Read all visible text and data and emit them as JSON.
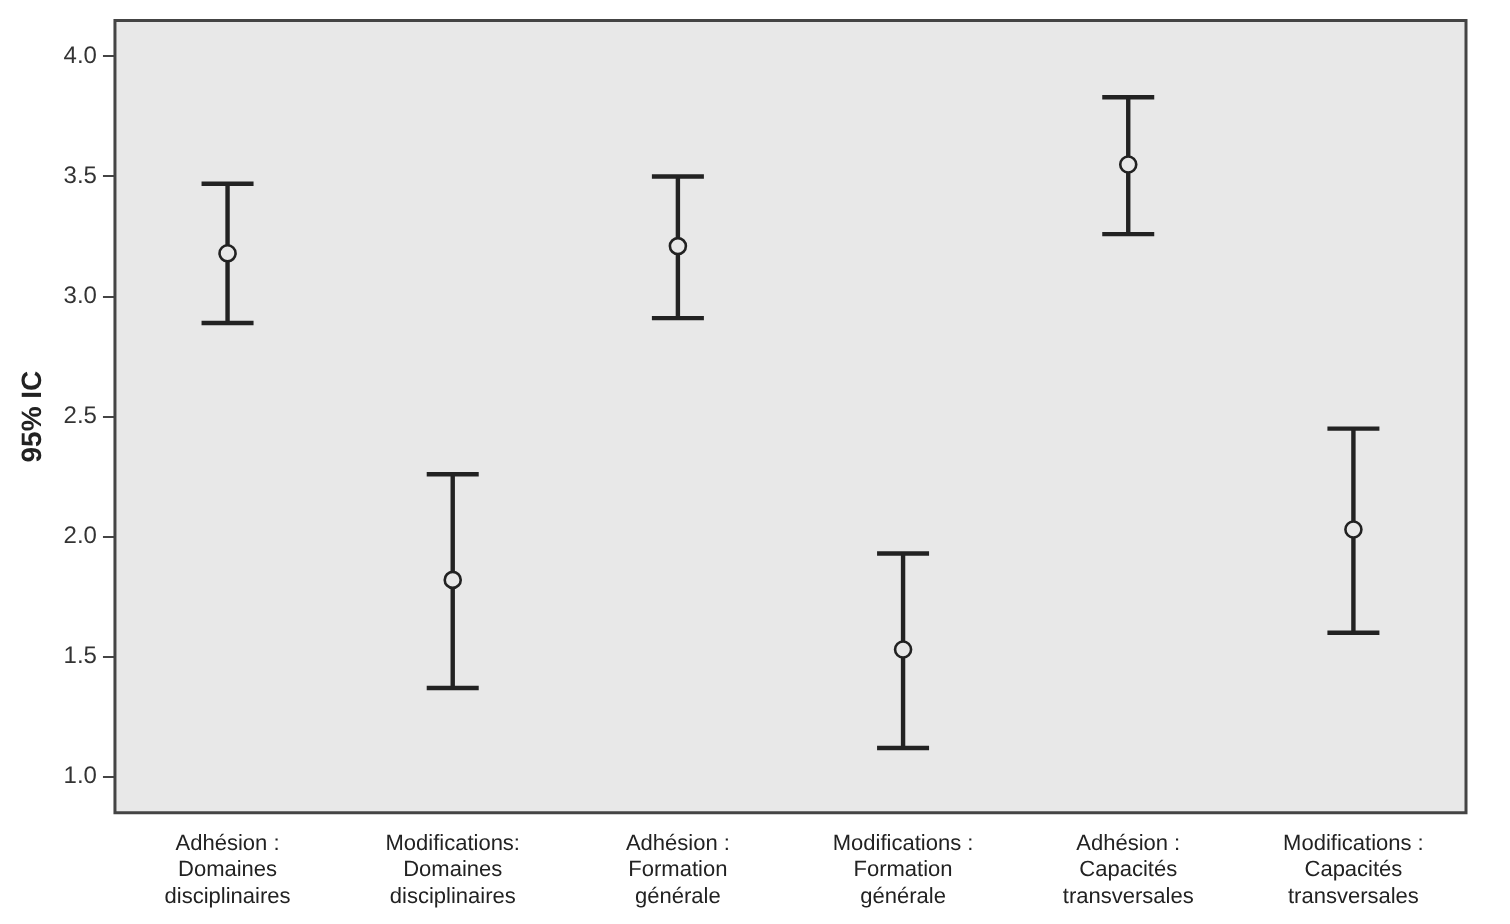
{
  "chart_data": {
    "type": "scatter",
    "ylabel": "95% IC",
    "categories": [
      "Adhésion : Domaines disciplinaires",
      "Modifications: Domaines disciplinaires",
      "Adhésion : Formation générale",
      "Modifications : Formation générale",
      "Adhésion : Capacités transversales",
      "Modifications : Capacités transversales"
    ],
    "series": [
      {
        "color": "#222222",
        "values": [
          3.18,
          1.82,
          3.21,
          1.53,
          3.55,
          2.03
        ],
        "errors": [
          [
            2.89,
            3.47
          ],
          [
            1.37,
            2.26
          ],
          [
            2.91,
            3.5
          ],
          [
            1.12,
            1.93
          ],
          [
            3.26,
            3.83
          ],
          [
            1.6,
            2.45
          ]
        ]
      }
    ],
    "ylim": [
      0.85,
      4.15
    ],
    "yticks": [
      {
        "value": 1,
        "label": "1.0"
      },
      {
        "value": 1.5,
        "label": "1.5"
      },
      {
        "value": 2,
        "label": "2.0"
      },
      {
        "value": 2.5,
        "label": "2.5"
      },
      {
        "value": 3,
        "label": "3.0"
      },
      {
        "value": 3.5,
        "label": "3.5"
      },
      {
        "value": 4,
        "label": "4.0"
      }
    ],
    "grid": false,
    "legend": false,
    "marker": "circle"
  }
}
